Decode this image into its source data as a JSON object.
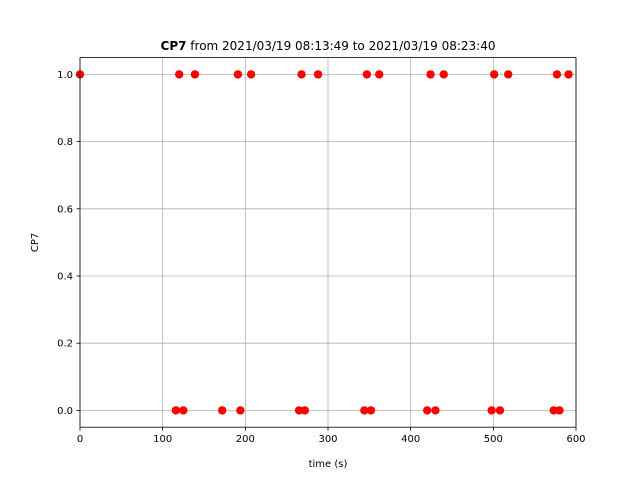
{
  "chart_data": {
    "type": "scatter",
    "title_bold": "CP7",
    "title_rest": " from 2021/03/19 08:13:49 to 2021/03/19 08:23:40",
    "xlabel": "time (s)",
    "ylabel": "CP7",
    "xlim": [
      0,
      600
    ],
    "ylim": [
      -0.05,
      1.05
    ],
    "xticks": [
      0,
      100,
      200,
      300,
      400,
      500,
      600
    ],
    "yticks": [
      0.0,
      0.2,
      0.4,
      0.6,
      0.8,
      1.0
    ],
    "xtick_labels": [
      "0",
      "100",
      "200",
      "300",
      "400",
      "500",
      "600"
    ],
    "ytick_labels": [
      "0.0",
      "0.2",
      "0.4",
      "0.6",
      "0.8",
      "1.0"
    ],
    "grid": true,
    "marker_color": "#ff0000",
    "series": [
      {
        "x": [
          0,
          116,
          120,
          125,
          139,
          172,
          191,
          194,
          207,
          265,
          268,
          272,
          288,
          344,
          347,
          352,
          362,
          420,
          424,
          430,
          440,
          498,
          501,
          508,
          518,
          573,
          577,
          580,
          591
        ],
        "y": [
          1,
          0,
          1,
          0,
          1,
          0,
          1,
          0,
          1,
          0,
          1,
          0,
          1,
          0,
          1,
          0,
          1,
          0,
          1,
          0,
          1,
          0,
          1,
          0,
          1,
          0,
          1,
          0,
          1
        ]
      }
    ]
  }
}
